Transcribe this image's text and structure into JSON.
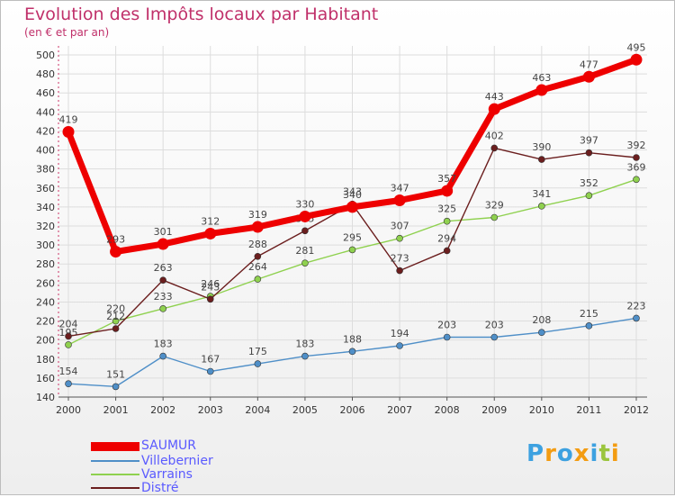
{
  "header": {
    "title": "Evolution des Impôts locaux par Habitant",
    "subtitle": "(en € et par an)"
  },
  "logo": {
    "text": "Proxiti",
    "letters": [
      "P",
      "r",
      "o",
      "x",
      "i",
      "t",
      "i"
    ],
    "colors": [
      "#3da1e0",
      "#f39c12",
      "#3da1e0",
      "#f39c12",
      "#3da1e0",
      "#9bc53d",
      "#f39c12"
    ]
  },
  "chart_data": {
    "type": "line",
    "title": "Evolution des Impôts locaux par Habitant",
    "subtitle": "(en € et par an)",
    "xlabel": "",
    "ylabel": "",
    "x": [
      "2000",
      "2001",
      "2002",
      "2003",
      "2004",
      "2005",
      "2006",
      "2007",
      "2008",
      "2009",
      "2010",
      "2011",
      "2012"
    ],
    "ylim": [
      140,
      500
    ],
    "yticks": [
      140,
      160,
      180,
      200,
      220,
      240,
      260,
      280,
      300,
      320,
      340,
      360,
      380,
      400,
      420,
      440,
      460,
      480,
      500
    ],
    "grid": true,
    "legend_position": "bottom-left",
    "series": [
      {
        "name": "SAUMUR",
        "color": "#ee0000",
        "values": [
          419,
          293,
          301,
          312,
          319,
          330,
          340,
          347,
          357,
          443,
          463,
          477,
          495
        ]
      },
      {
        "name": "Villebernier",
        "color": "#4f8fc8",
        "values": [
          154,
          151,
          183,
          167,
          175,
          183,
          188,
          194,
          203,
          203,
          208,
          215,
          223
        ]
      },
      {
        "name": "Varrains",
        "color": "#8fd14f",
        "values": [
          195,
          220,
          233,
          246,
          264,
          281,
          295,
          307,
          325,
          329,
          341,
          352,
          369
        ]
      },
      {
        "name": "Distré",
        "color": "#6b1e1e",
        "values": [
          204,
          212,
          263,
          243,
          288,
          315,
          343,
          273,
          294,
          402,
          390,
          397,
          392
        ]
      }
    ]
  }
}
